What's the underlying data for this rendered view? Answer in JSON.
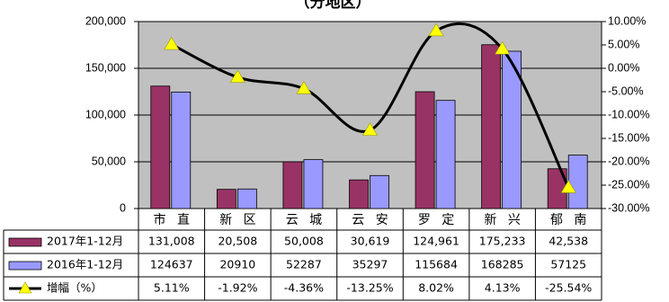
{
  "chart_data": {
    "type": "bar",
    "title": "（分地区）",
    "categories": [
      "市 直",
      "新 区",
      "云 城",
      "云 安",
      "罗 定",
      "新 兴",
      "郁 南"
    ],
    "y_left": {
      "ylim": [
        0,
        200000
      ],
      "ticks": [
        "0",
        "50,000",
        "100,000",
        "150,000",
        "200,000"
      ]
    },
    "y_right": {
      "ylim": [
        -30,
        10
      ],
      "ticks": [
        "-30.00%",
        "-25.00%",
        "-20.00%",
        "-15.00%",
        "-10.00%",
        "-5.00%",
        "0.00%",
        "5.00%",
        "10.00%"
      ]
    },
    "series": [
      {
        "name": "2017年1-12月",
        "type": "bar",
        "axis": "left",
        "color": "#993366",
        "values": [
          131008,
          20508,
          50008,
          30619,
          124961,
          175233,
          42538
        ],
        "labels": [
          "131,008",
          "20,508",
          "50,008",
          "30,619",
          "124,961",
          "175,233",
          "42,538"
        ]
      },
      {
        "name": "2016年1-12月",
        "type": "bar",
        "axis": "left",
        "color": "#9999ff",
        "values": [
          124637,
          20910,
          52287,
          35297,
          115684,
          168285,
          57125
        ],
        "labels": [
          "124637",
          "20910",
          "52287",
          "35297",
          "115684",
          "168285",
          "57125"
        ]
      },
      {
        "name": "增幅（%）",
        "type": "line",
        "axis": "right",
        "color": "#000000",
        "marker_color": "#ffff00",
        "values": [
          5.11,
          -1.92,
          -4.36,
          -13.25,
          8.02,
          4.13,
          -25.54
        ],
        "labels": [
          "5.11%",
          "-1.92%",
          "-4.36%",
          "-13.25%",
          "8.02%",
          "4.13%",
          "-25.54%"
        ]
      }
    ],
    "plot_background": "#c0c0c0",
    "grid": true,
    "legend": "data-table-left"
  }
}
